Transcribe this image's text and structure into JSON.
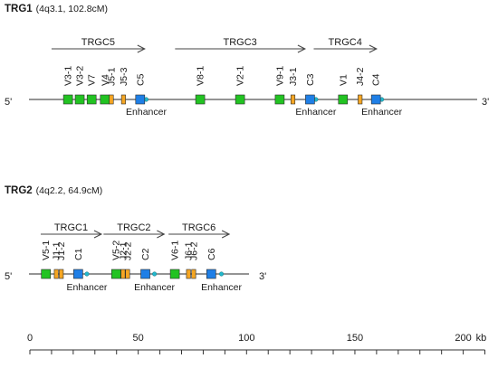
{
  "loci": [
    {
      "name": "TRG1",
      "location": "(4q3.1, 102.8cM)",
      "five_prime": "5'",
      "three_prime": "3'",
      "groups": [
        {
          "label": "TRGC5",
          "start_kb": 10,
          "end_kb": 53
        },
        {
          "label": "TRGC3",
          "start_kb": 67,
          "end_kb": 127
        },
        {
          "label": "TRGC4",
          "start_kb": 131,
          "end_kb": 160
        }
      ],
      "segments": [
        {
          "label": "V3-1",
          "type": "V",
          "kb": 17.6
        },
        {
          "label": "V3-2",
          "type": "V",
          "kb": 23
        },
        {
          "label": "V7",
          "type": "V",
          "kb": 28.5
        },
        {
          "label": "V4",
          "type": "V",
          "kb": 34.6
        },
        {
          "label": "J5-1",
          "type": "J",
          "kb": 37.6
        },
        {
          "label": "J5-3",
          "type": "J",
          "kb": 43.2
        },
        {
          "label": "C5",
          "type": "C",
          "kb": 50.9
        },
        {
          "label": "V8-1",
          "type": "V",
          "kb": 78.6
        },
        {
          "label": "V2-1",
          "type": "V",
          "kb": 97
        },
        {
          "label": "V9-1",
          "type": "V",
          "kb": 115.3
        },
        {
          "label": "J3-1",
          "type": "J",
          "kb": 121.4
        },
        {
          "label": "C3",
          "type": "C",
          "kb": 129.3
        },
        {
          "label": "V1",
          "type": "V",
          "kb": 144.5
        },
        {
          "label": "J4-2",
          "type": "J",
          "kb": 152.4
        },
        {
          "label": "C4",
          "type": "C",
          "kb": 159.7
        }
      ],
      "enhancers": [
        {
          "label": "Enhancer",
          "kb": 53.7
        },
        {
          "label": "Enhancer",
          "kb": 132
        },
        {
          "label": "Enhancer",
          "kb": 162.4
        }
      ]
    },
    {
      "name": "TRG2",
      "location": "(4q2.2, 64.9cM)",
      "five_prime": "5'",
      "three_prime": "3'",
      "groups": [
        {
          "label": "TRGC1",
          "start_kb": 5,
          "end_kb": 33
        },
        {
          "label": "TRGC2",
          "start_kb": 34,
          "end_kb": 62
        },
        {
          "label": "TRGC6",
          "start_kb": 64,
          "end_kb": 92
        }
      ],
      "segments": [
        {
          "label": "V5-1",
          "type": "V",
          "kb": 7.4
        },
        {
          "label": "J1-1",
          "type": "J",
          "kb": 12.2
        },
        {
          "label": "J1-2",
          "type": "J",
          "kb": 14.5
        },
        {
          "label": "C1",
          "type": "C",
          "kb": 22.3
        },
        {
          "label": "V5-2",
          "type": "V",
          "kb": 39.8
        },
        {
          "label": "J2-1",
          "type": "J",
          "kb": 43
        },
        {
          "label": "J2-2",
          "type": "J",
          "kb": 45.1
        },
        {
          "label": "C2",
          "type": "C",
          "kb": 53.3
        },
        {
          "label": "V6-1",
          "type": "V",
          "kb": 66.9
        },
        {
          "label": "J6-1",
          "type": "J",
          "kb": 73.2
        },
        {
          "label": "J6-2",
          "type": "J",
          "kb": 75.6
        },
        {
          "label": "C6",
          "type": "C",
          "kb": 83.7
        }
      ],
      "enhancers": [
        {
          "label": "Enhancer",
          "kb": 26.3
        },
        {
          "label": "Enhancer",
          "kb": 57.5
        },
        {
          "label": "Enhancer",
          "kb": 88.4
        }
      ]
    }
  ],
  "scale": {
    "ticks": [
      0,
      50,
      100,
      150,
      200
    ],
    "unit": "kb",
    "min_kb": 0,
    "max_kb": 210,
    "minor_step_kb": 10
  },
  "colors": {
    "V": "#22c322",
    "J": "#f5a623",
    "C": "#1f7fe6",
    "enhancer": "#22b8cc",
    "line": "#555555",
    "arrow": "#444444"
  }
}
